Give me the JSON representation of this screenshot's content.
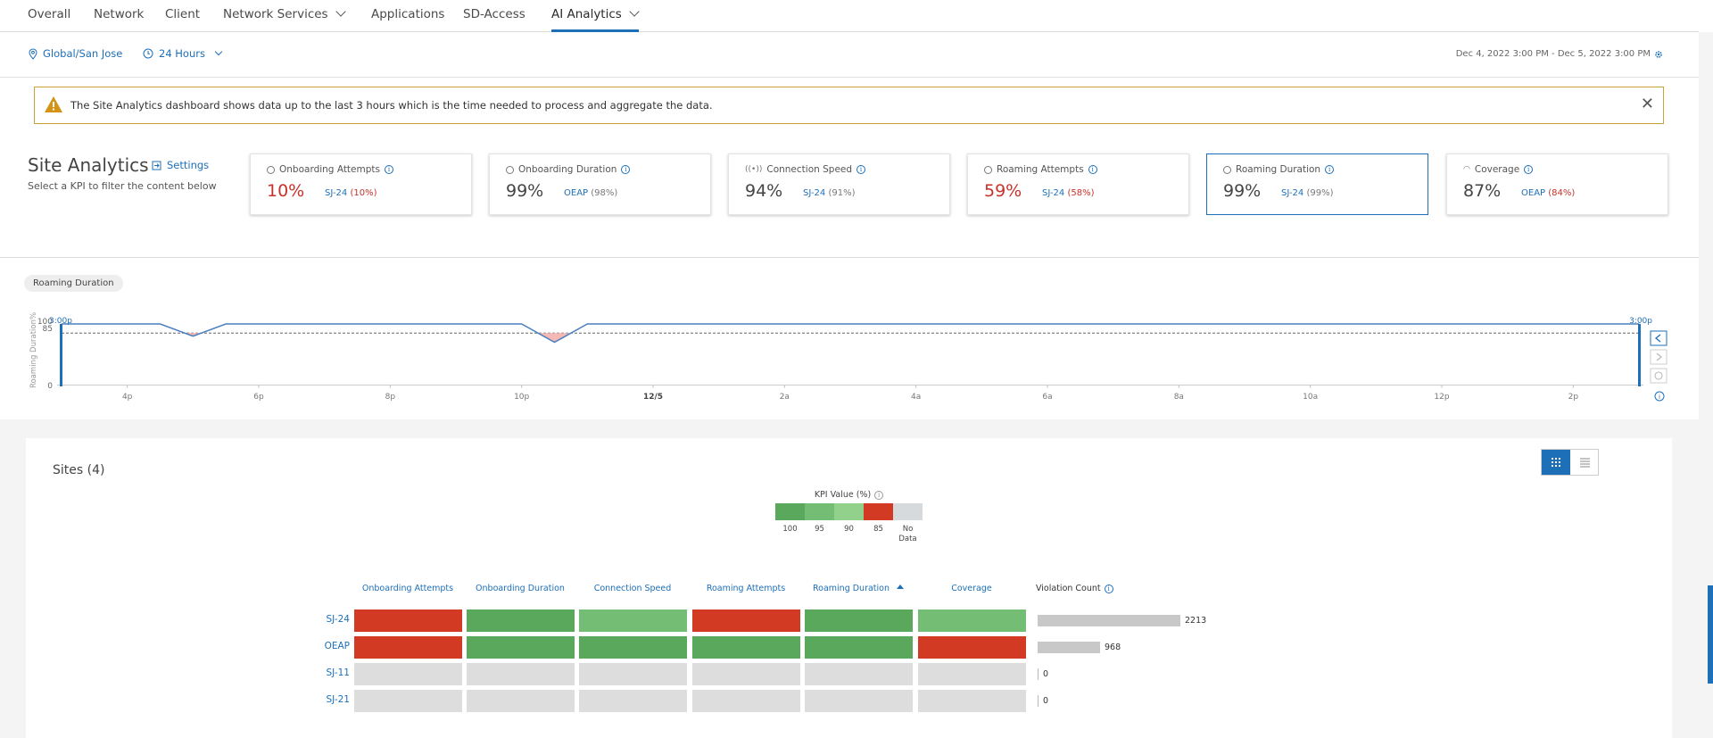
{
  "nav": {
    "tabs": [
      {
        "label": "Overall"
      },
      {
        "label": "Network"
      },
      {
        "label": "Client"
      },
      {
        "label": "Network Services"
      },
      {
        "label": "Applications"
      },
      {
        "label": "SD-Access"
      },
      {
        "label": "AI Analytics"
      }
    ],
    "active_tab": "AI Analytics"
  },
  "filters": {
    "location": "Global/San Jose",
    "time_window": "24 Hours",
    "range": "Dec 4, 2022 3:00 PM - Dec 5, 2022 3:00 PM"
  },
  "alert": {
    "message": "The Site Analytics dashboard shows data up to the last 3 hours which is the time needed to process and aggregate the data."
  },
  "header": {
    "title": "Site Analytics",
    "settings_label": "Settings",
    "subtitle": "Select a KPI to filter the content below"
  },
  "kpis": [
    {
      "name": "Onboarding Attempts",
      "value": "10%",
      "site": "SJ-24",
      "site_pct": "(10%)",
      "status": "bad"
    },
    {
      "name": "Onboarding Duration",
      "value": "99%",
      "site": "OEAP",
      "site_pct": "(98%)",
      "status": "ok"
    },
    {
      "name": "Connection Speed",
      "value": "94%",
      "site": "SJ-24",
      "site_pct": "(91%)",
      "status": "ok"
    },
    {
      "name": "Roaming Attempts",
      "value": "59%",
      "site": "SJ-24",
      "site_pct": "(58%)",
      "status": "bad"
    },
    {
      "name": "Roaming Duration",
      "value": "99%",
      "site": "SJ-24",
      "site_pct": "(99%)",
      "status": "ok",
      "selected": true
    },
    {
      "name": "Coverage",
      "value": "87%",
      "site": "OEAP",
      "site_pct": "(84%)",
      "status": "bad"
    }
  ],
  "chart_data": {
    "type": "line",
    "title": "Roaming Duration",
    "ylabel": "Roaming Duration%",
    "ylim": [
      0,
      100
    ],
    "yticks": [
      "100",
      "85",
      "0"
    ],
    "threshold": 85,
    "start_label": "3:00p",
    "end_label": "3:00p",
    "xticks": [
      "4p",
      "6p",
      "8p",
      "10p",
      "12/5",
      "2a",
      "4a",
      "6a",
      "8a",
      "10a",
      "12p",
      "2p"
    ],
    "x": [
      "3p",
      "4p",
      "4:30p",
      "5p",
      "5:30p",
      "6p",
      "10p",
      "10:30p",
      "11p",
      "2p",
      "3p"
    ],
    "series": [
      {
        "values": [
          100,
          100,
          100,
          80,
          100,
          100,
          100,
          70,
          100,
          100,
          100
        ]
      }
    ]
  },
  "sites": {
    "title": "Sites (4)",
    "legend_title": "KPI Value (%)",
    "legend": [
      {
        "label": "100",
        "color": "#5aa85b"
      },
      {
        "label": "95",
        "color": "#74bd75"
      },
      {
        "label": "90",
        "color": "#92d18c"
      },
      {
        "label": "85",
        "color": "#d23a24"
      },
      {
        "label": "No Data",
        "color": "#d7dadc"
      }
    ],
    "columns": [
      "Onboarding Attempts",
      "Onboarding Duration",
      "Connection Speed",
      "Roaming Attempts",
      "Roaming Duration",
      "Coverage"
    ],
    "violation_header": "Violation Count",
    "sorted_column": "Roaming Duration",
    "rows": [
      {
        "site": "SJ-24",
        "cells": [
          "red",
          "green",
          "lightgreen",
          "red",
          "green",
          "lightgreen"
        ],
        "violations": "2213",
        "violation_value": 2213
      },
      {
        "site": "OEAP",
        "cells": [
          "red",
          "green",
          "green",
          "green",
          "green",
          "red"
        ],
        "violations": "968",
        "violation_value": 968
      },
      {
        "site": "SJ-11",
        "cells": [
          "nodata",
          "nodata",
          "nodata",
          "nodata",
          "nodata",
          "nodata"
        ],
        "violations": "0",
        "violation_value": 0
      },
      {
        "site": "SJ-21",
        "cells": [
          "nodata",
          "nodata",
          "nodata",
          "nodata",
          "nodata",
          "nodata"
        ],
        "violations": "0",
        "violation_value": 0
      }
    ],
    "cell_colors": {
      "red": "#d23a24",
      "green": "#5aa85b",
      "lightgreen": "#74bd75",
      "nodata": "#dddddd"
    }
  }
}
